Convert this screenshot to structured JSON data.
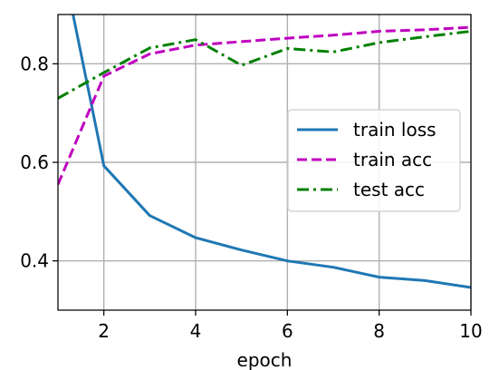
{
  "chart_data": {
    "type": "line",
    "xlabel": "epoch",
    "ylabel": "",
    "xlim": [
      1,
      10
    ],
    "ylim": [
      0.3,
      0.9
    ],
    "xticks": [
      2,
      4,
      6,
      8,
      10
    ],
    "yticks": [
      0.4,
      0.6,
      0.8
    ],
    "xtick_labels": [
      "2",
      "4",
      "6",
      "8",
      "10"
    ],
    "ytick_labels": [
      "0.4",
      "0.6",
      "0.8"
    ],
    "grid": true,
    "legend_position": "center-right",
    "series": [
      {
        "name": "train loss",
        "color": "#1f77b4",
        "dash": "solid",
        "x": [
          1,
          2,
          3,
          4,
          5,
          6,
          7,
          8,
          9,
          10
        ],
        "y": [
          1.05,
          0.593,
          0.492,
          0.447,
          0.422,
          0.4,
          0.387,
          0.367,
          0.36,
          0.346
        ]
      },
      {
        "name": "train acc",
        "color": "#bf00bf",
        "dash": "dashed",
        "x": [
          1,
          2,
          3,
          4,
          5,
          6,
          7,
          8,
          9,
          10
        ],
        "y": [
          0.555,
          0.775,
          0.82,
          0.838,
          0.845,
          0.852,
          0.858,
          0.866,
          0.869,
          0.874
        ]
      },
      {
        "name": "test acc",
        "color": "#008000",
        "dash": "dashdot",
        "x": [
          1,
          2,
          3,
          4,
          5,
          6,
          7,
          8,
          9,
          10
        ],
        "y": [
          0.73,
          0.782,
          0.832,
          0.849,
          0.797,
          0.831,
          0.824,
          0.843,
          0.855,
          0.866
        ]
      }
    ]
  }
}
